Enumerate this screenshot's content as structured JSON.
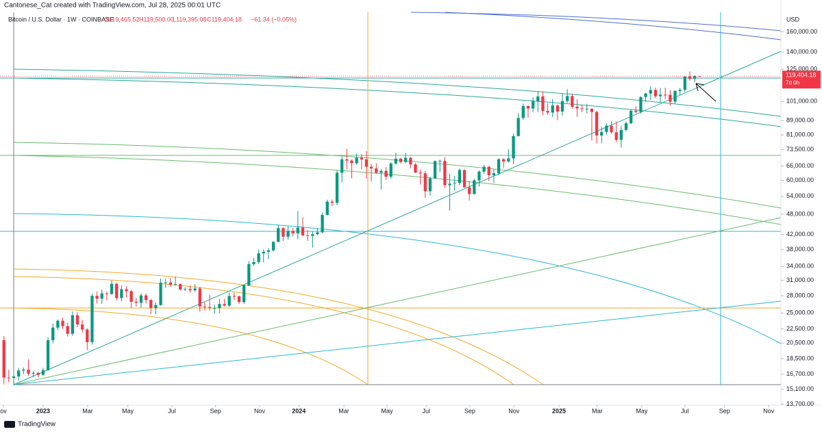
{
  "chart_data": {
    "type": "candlestick",
    "credit": "Cantonese_Cat created with TradingView.com, Jul 28, 2025 00:01 UTC",
    "title": "Bitcoin / U.S. Dollar · 1W · COINBASE",
    "ohlc_text": [
      "O119,465.52",
      "H119,500.00",
      "L119,395.08",
      "C119,404.18",
      "−61.34 (−0.05%)"
    ],
    "currency": "USD",
    "price_tag": "119,404.18",
    "countdown": "7d 0h",
    "brand": "TradingView",
    "log_scale": true,
    "grid": false,
    "up_color": "#089981",
    "down_color": "#f23645",
    "xlim": [
      -0.8,
      158.6
    ],
    "xticks": [
      {
        "value": -0.1,
        "label": "ov"
      },
      {
        "value": 8,
        "label": "2023"
      },
      {
        "value": 17.1,
        "label": "Mar"
      },
      {
        "value": 25.3,
        "label": "May"
      },
      {
        "value": 34.3,
        "label": "Jul"
      },
      {
        "value": 43.2,
        "label": "Sep"
      },
      {
        "value": 52.2,
        "label": "Nov"
      },
      {
        "value": 60.2,
        "label": "2024"
      },
      {
        "value": 69.4,
        "label": "Mar"
      },
      {
        "value": 78.2,
        "label": "May"
      },
      {
        "value": 86.2,
        "label": "Jul"
      },
      {
        "value": 95.1,
        "label": "Sep"
      },
      {
        "value": 104.1,
        "label": "Nov"
      },
      {
        "value": 113.3,
        "label": "2025"
      },
      {
        "value": 121.1,
        "label": "Mar"
      },
      {
        "value": 130.2,
        "label": "May"
      },
      {
        "value": 139,
        "label": "Jul"
      },
      {
        "value": 147.1,
        "label": "Sep"
      },
      {
        "value": 156.1,
        "label": "Nov"
      }
    ],
    "ylim": [
      13600,
      182000
    ],
    "yticks": [
      {
        "value": 160000,
        "label": "160,000.00"
      },
      {
        "value": 140000,
        "label": "140,000.00"
      },
      {
        "value": 125000,
        "label": "125,000.00"
      },
      {
        "value": 101000,
        "label": "101,000.00"
      },
      {
        "value": 89000,
        "label": "89,000.00"
      },
      {
        "value": 81000,
        "label": "81,000.00"
      },
      {
        "value": 73500,
        "label": "73,500.00"
      },
      {
        "value": 66000,
        "label": "66,000.00"
      },
      {
        "value": 60000,
        "label": "60,000.00"
      },
      {
        "value": 54000,
        "label": "54,000.00"
      },
      {
        "value": 48000,
        "label": "48,000.00"
      },
      {
        "value": 42000,
        "label": "42,000.00"
      },
      {
        "value": 38000,
        "label": "38,000.00"
      },
      {
        "value": 34000,
        "label": "34,000.00"
      },
      {
        "value": 31000,
        "label": "31,000.00"
      },
      {
        "value": 28000,
        "label": "28,000.00"
      },
      {
        "value": 25000,
        "label": "25,000.00"
      },
      {
        "value": 22500,
        "label": "22,500.00"
      },
      {
        "value": 20500,
        "label": "20,500.00"
      },
      {
        "value": 18500,
        "label": "18,500.00"
      },
      {
        "value": 16700,
        "label": "16,700.00"
      },
      {
        "value": 15100,
        "label": "15,100.00"
      },
      {
        "value": 13700,
        "label": "13,700.00"
      }
    ],
    "ohlc": [
      [
        20900,
        21450,
        15600,
        16330
      ],
      [
        16330,
        17200,
        15800,
        16280
      ],
      [
        16280,
        16750,
        15500,
        16450
      ],
      [
        16450,
        17400,
        16000,
        17100
      ],
      [
        17100,
        17450,
        16700,
        17200
      ],
      [
        17200,
        18400,
        16500,
        16750
      ],
      [
        16750,
        17000,
        16400,
        16840
      ],
      [
        16840,
        16950,
        16350,
        16620
      ],
      [
        16620,
        17400,
        16500,
        17130
      ],
      [
        17130,
        21300,
        17100,
        20880
      ],
      [
        20880,
        23300,
        20450,
        22700
      ],
      [
        22700,
        23950,
        22300,
        23750
      ],
      [
        23750,
        24250,
        22500,
        22930
      ],
      [
        22930,
        23450,
        21400,
        21800
      ],
      [
        21800,
        25250,
        21500,
        24630
      ],
      [
        24630,
        25150,
        22750,
        23170
      ],
      [
        23170,
        23900,
        21950,
        22420
      ],
      [
        22420,
        22600,
        19550,
        20620
      ],
      [
        20620,
        28400,
        20300,
        27990
      ],
      [
        27990,
        28800,
        26600,
        27480
      ],
      [
        27480,
        29200,
        26550,
        28450
      ],
      [
        28450,
        28800,
        27200,
        28330
      ],
      [
        28330,
        31000,
        28200,
        30310
      ],
      [
        30310,
        30500,
        27150,
        27590
      ],
      [
        27590,
        30000,
        26950,
        29240
      ],
      [
        29240,
        29800,
        27700,
        28870
      ],
      [
        28870,
        29100,
        25800,
        26930
      ],
      [
        26930,
        27650,
        26100,
        26750
      ],
      [
        26750,
        28450,
        25900,
        28080
      ],
      [
        28080,
        28450,
        26600,
        27240
      ],
      [
        27240,
        27400,
        24800,
        25840
      ],
      [
        25840,
        26800,
        24800,
        26330
      ],
      [
        26330,
        31400,
        26250,
        30540
      ],
      [
        30540,
        31300,
        29500,
        30590
      ],
      [
        30590,
        31500,
        29700,
        30170
      ],
      [
        30170,
        31800,
        29950,
        30240
      ],
      [
        30240,
        30400,
        29000,
        29200
      ],
      [
        29200,
        29600,
        28900,
        29270
      ],
      [
        29270,
        30000,
        28600,
        29040
      ],
      [
        29040,
        30250,
        28700,
        29400
      ],
      [
        29400,
        29700,
        25200,
        26100
      ],
      [
        26100,
        26850,
        25400,
        26000
      ],
      [
        26000,
        28200,
        25400,
        25830
      ],
      [
        25830,
        26400,
        24900,
        25830
      ],
      [
        25830,
        27400,
        24950,
        26530
      ],
      [
        26530,
        27450,
        26100,
        26250
      ],
      [
        26250,
        28600,
        26000,
        27970
      ],
      [
        27970,
        28600,
        27200,
        27940
      ],
      [
        27940,
        28000,
        26550,
        26860
      ],
      [
        26860,
        30200,
        26550,
        29990
      ],
      [
        29990,
        35200,
        29900,
        34500
      ],
      [
        34500,
        35900,
        34100,
        35000
      ],
      [
        35000,
        38000,
        34600,
        37060
      ],
      [
        37060,
        38000,
        34900,
        37450
      ],
      [
        37450,
        38400,
        35700,
        37800
      ],
      [
        37800,
        40250,
        37500,
        39970
      ],
      [
        39970,
        44750,
        39950,
        43790
      ],
      [
        43790,
        44050,
        40250,
        41370
      ],
      [
        41370,
        44300,
        40550,
        43000
      ],
      [
        43000,
        43800,
        41450,
        42280
      ],
      [
        42280,
        48970,
        40700,
        43930
      ],
      [
        43930,
        47000,
        41500,
        41730
      ],
      [
        41730,
        43200,
        40250,
        41580
      ],
      [
        41580,
        42850,
        38500,
        42030
      ],
      [
        42030,
        43850,
        41850,
        42580
      ],
      [
        42580,
        48500,
        42300,
        47760
      ],
      [
        47760,
        52800,
        47600,
        52140
      ],
      [
        52140,
        52900,
        50600,
        51730
      ],
      [
        51730,
        64000,
        50900,
        63110
      ],
      [
        63110,
        70200,
        59200,
        68950
      ],
      [
        68950,
        73800,
        64600,
        68380
      ],
      [
        68380,
        68900,
        60800,
        67200
      ],
      [
        67200,
        71700,
        66500,
        69700
      ],
      [
        69700,
        71300,
        64500,
        68910
      ],
      [
        68910,
        72800,
        60700,
        65660
      ],
      [
        65660,
        66900,
        59600,
        64940
      ],
      [
        64940,
        67200,
        62800,
        63110
      ],
      [
        63110,
        64700,
        56500,
        63900
      ],
      [
        63900,
        65500,
        60200,
        61480
      ],
      [
        61480,
        67700,
        60700,
        67060
      ],
      [
        67060,
        71950,
        66600,
        69250
      ],
      [
        69250,
        69600,
        67100,
        67750
      ],
      [
        67750,
        71950,
        67200,
        69650
      ],
      [
        69650,
        70000,
        65100,
        66680
      ],
      [
        66680,
        67300,
        63000,
        63180
      ],
      [
        63180,
        64500,
        58400,
        62870
      ],
      [
        62870,
        63800,
        53500,
        55850
      ],
      [
        55850,
        61400,
        54300,
        60800
      ],
      [
        60800,
        68400,
        60600,
        68170
      ],
      [
        68170,
        68800,
        63400,
        68240
      ],
      [
        68240,
        70000,
        57100,
        58130
      ],
      [
        58130,
        62700,
        49100,
        58720
      ],
      [
        58720,
        61800,
        56100,
        58980
      ],
      [
        58980,
        64900,
        58000,
        64250
      ],
      [
        64250,
        64500,
        57200,
        57300
      ],
      [
        57300,
        59800,
        52500,
        54850
      ],
      [
        54850,
        60600,
        54600,
        59990
      ],
      [
        59990,
        64100,
        57600,
        63580
      ],
      [
        63580,
        66500,
        62700,
        65630
      ],
      [
        65630,
        66100,
        59800,
        62080
      ],
      [
        62080,
        64500,
        58900,
        62900
      ],
      [
        62900,
        69400,
        62100,
        69000
      ],
      [
        69000,
        69500,
        65100,
        67950
      ],
      [
        67950,
        73600,
        67500,
        69370
      ],
      [
        69370,
        81800,
        66800,
        80390
      ],
      [
        80390,
        93500,
        80200,
        90600
      ],
      [
        90600,
        99600,
        89400,
        98000
      ],
      [
        98000,
        98700,
        90800,
        96450
      ],
      [
        96450,
        104000,
        94200,
        101200
      ],
      [
        101200,
        108300,
        94200,
        104450
      ],
      [
        104450,
        108000,
        92200,
        94900
      ],
      [
        94900,
        99900,
        92500,
        93900
      ],
      [
        93900,
        102700,
        91200,
        98400
      ],
      [
        98400,
        99000,
        89300,
        94500
      ],
      [
        94500,
        106400,
        92000,
        101300
      ],
      [
        101300,
        109600,
        100000,
        104700
      ],
      [
        104700,
        106400,
        96300,
        97600
      ],
      [
        97600,
        102500,
        91300,
        96500
      ],
      [
        96500,
        98800,
        94100,
        96100
      ],
      [
        96100,
        99500,
        93400,
        96300
      ],
      [
        96300,
        96500,
        78200,
        94300
      ],
      [
        94300,
        95000,
        76600,
        80700
      ],
      [
        80700,
        85300,
        76600,
        82600
      ],
      [
        82600,
        87500,
        81200,
        86100
      ],
      [
        86100,
        88700,
        81600,
        82400
      ],
      [
        82400,
        88500,
        77200,
        78400
      ],
      [
        78400,
        86000,
        74500,
        83700
      ],
      [
        83700,
        88400,
        83100,
        87500
      ],
      [
        87500,
        95700,
        87000,
        95000
      ],
      [
        95000,
        97900,
        93400,
        94300
      ],
      [
        94300,
        104300,
        93300,
        104100
      ],
      [
        104100,
        107000,
        100800,
        106500
      ],
      [
        106500,
        111900,
        102000,
        109000
      ],
      [
        109000,
        110700,
        103100,
        104600
      ],
      [
        104600,
        110500,
        100400,
        105700
      ],
      [
        105700,
        110600,
        102600,
        105600
      ],
      [
        105600,
        108900,
        98200,
        100900
      ],
      [
        100900,
        108500,
        99600,
        108400
      ],
      [
        108400,
        110500,
        105100,
        109200
      ],
      [
        109200,
        119500,
        107500,
        119100
      ],
      [
        119100,
        123200,
        115700,
        117300
      ],
      [
        117300,
        120200,
        114700,
        119450
      ],
      [
        119465.52,
        119500,
        119395.08,
        119404.18
      ]
    ]
  }
}
